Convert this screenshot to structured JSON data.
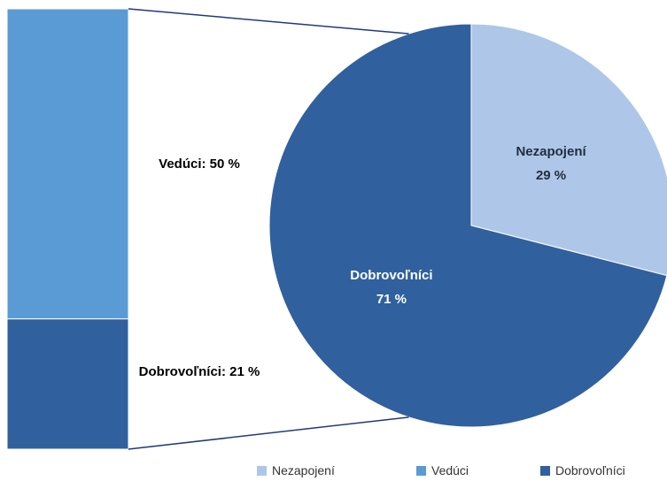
{
  "chart_data": {
    "type": "bar-of-pie",
    "pie": {
      "categories": [
        "Nezapojení",
        "Dobrovoľníci"
      ],
      "values": [
        29,
        71
      ],
      "value_labels": [
        "29 %",
        "71 %"
      ],
      "colors": [
        "#aec7e8",
        "#30609e"
      ]
    },
    "bar": {
      "categories": [
        "Vedúci",
        "Dobrovoľníci"
      ],
      "values": [
        50,
        21
      ],
      "value_labels": [
        "Vedúci: 50 %",
        "Dobrovoľníci: 21 %"
      ],
      "colors": [
        "#5b9bd5",
        "#30609e"
      ]
    },
    "legend": [
      {
        "name": "Nezapojení",
        "color": "#aec7e8"
      },
      {
        "name": "Vedúci",
        "color": "#5b9bd5"
      },
      {
        "name": "Dobrovoľníci",
        "color": "#30609e"
      }
    ]
  }
}
